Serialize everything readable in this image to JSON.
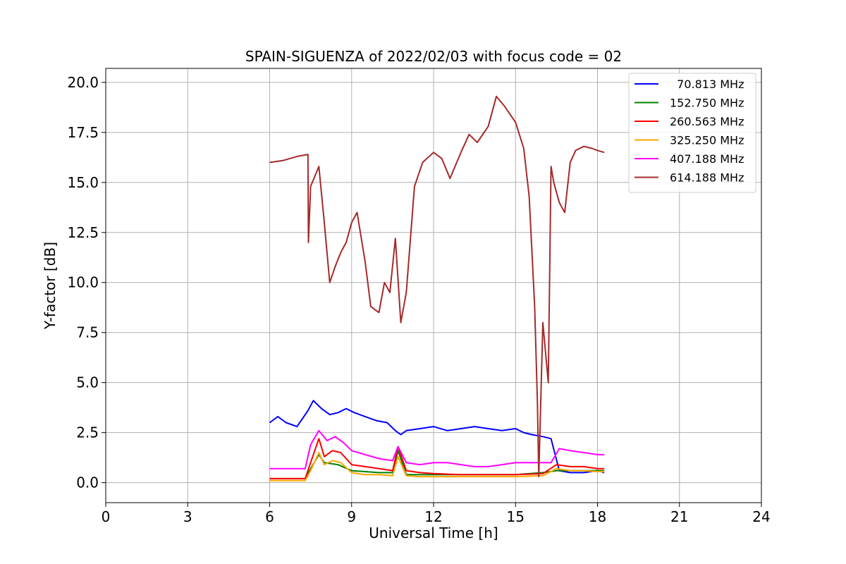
{
  "chart_data": {
    "type": "line",
    "title": "SPAIN-SIGUENZA of 2022/02/03 with focus code = 02",
    "xlabel": "Universal Time [h]",
    "ylabel": "Y-factor [dB]",
    "xlim": [
      0,
      24
    ],
    "ylim": [
      -1.0,
      20.7
    ],
    "xticks": [
      0,
      3,
      6,
      9,
      12,
      15,
      18,
      21,
      24
    ],
    "xtick_labels": [
      "0",
      "3",
      "6",
      "9",
      "12",
      "15",
      "18",
      "21",
      "24"
    ],
    "yticks": [
      0.0,
      2.5,
      5.0,
      7.5,
      10.0,
      12.5,
      15.0,
      17.5,
      20.0
    ],
    "ytick_labels": [
      "0.0",
      "2.5",
      "5.0",
      "7.5",
      "10.0",
      "12.5",
      "15.0",
      "17.5",
      "20.0"
    ],
    "grid": true,
    "legend_position": "top-right",
    "series": [
      {
        "name": "  70.813 MHz",
        "color": "#0000ff",
        "x": [
          6.0,
          6.3,
          6.6,
          7.0,
          7.4,
          7.6,
          7.9,
          8.2,
          8.5,
          8.8,
          9.1,
          9.5,
          9.9,
          10.3,
          10.6,
          10.8,
          11.0,
          11.5,
          12.0,
          12.5,
          13.0,
          13.5,
          14.0,
          14.5,
          15.0,
          15.3,
          15.6,
          16.0,
          16.3,
          16.6,
          17.0,
          17.5,
          18.0,
          18.25
        ],
        "y": [
          3.0,
          3.3,
          3.0,
          2.8,
          3.6,
          4.1,
          3.7,
          3.4,
          3.5,
          3.7,
          3.5,
          3.3,
          3.1,
          3.0,
          2.6,
          2.4,
          2.6,
          2.7,
          2.8,
          2.6,
          2.7,
          2.8,
          2.7,
          2.6,
          2.7,
          2.5,
          2.4,
          2.3,
          2.2,
          0.6,
          0.5,
          0.5,
          0.6,
          0.5
        ]
      },
      {
        "name": "152.750 MHz",
        "color": "#008000",
        "x": [
          6.0,
          7.3,
          7.5,
          7.8,
          8.0,
          8.5,
          9.0,
          10.0,
          10.5,
          10.7,
          11.0,
          12.0,
          13.0,
          14.0,
          15.0,
          16.0,
          16.5,
          17.0,
          18.0,
          18.25
        ],
        "y": [
          0.2,
          0.2,
          0.7,
          1.4,
          1.0,
          0.9,
          0.6,
          0.5,
          0.5,
          1.6,
          0.4,
          0.4,
          0.4,
          0.4,
          0.4,
          0.5,
          0.6,
          0.6,
          0.6,
          0.6
        ]
      },
      {
        "name": "260.563 MHz",
        "color": "#ff0000",
        "x": [
          6.0,
          7.3,
          7.5,
          7.8,
          8.0,
          8.3,
          8.6,
          9.0,
          9.5,
          10.0,
          10.5,
          10.7,
          11.0,
          11.5,
          12.0,
          13.0,
          14.0,
          15.0,
          16.0,
          16.5,
          17.0,
          17.5,
          18.0,
          18.25
        ],
        "y": [
          0.2,
          0.2,
          1.0,
          2.2,
          1.3,
          1.6,
          1.5,
          0.9,
          0.8,
          0.7,
          0.6,
          1.8,
          0.6,
          0.5,
          0.45,
          0.4,
          0.4,
          0.4,
          0.45,
          0.9,
          0.8,
          0.8,
          0.7,
          0.7
        ]
      },
      {
        "name": "325.250 MHz",
        "color": "#ffa500",
        "x": [
          6.0,
          7.3,
          7.5,
          7.8,
          8.0,
          8.3,
          8.6,
          9.0,
          9.5,
          10.0,
          10.5,
          10.7,
          11.0,
          11.5,
          12.0,
          13.0,
          14.0,
          15.0,
          16.0,
          16.5,
          17.0,
          17.5,
          18.0,
          18.25
        ],
        "y": [
          0.1,
          0.1,
          0.6,
          1.5,
          0.9,
          1.1,
          1.0,
          0.5,
          0.4,
          0.4,
          0.35,
          1.3,
          0.35,
          0.3,
          0.3,
          0.3,
          0.3,
          0.3,
          0.35,
          0.7,
          0.6,
          0.6,
          0.55,
          0.55
        ]
      },
      {
        "name": "407.188 MHz",
        "color": "#ff00ff",
        "x": [
          6.0,
          7.0,
          7.3,
          7.5,
          7.8,
          8.1,
          8.4,
          8.7,
          9.0,
          9.5,
          10.0,
          10.5,
          10.7,
          11.0,
          11.5,
          12.0,
          12.5,
          13.0,
          13.5,
          14.0,
          14.5,
          15.0,
          15.5,
          16.0,
          16.3,
          16.6,
          17.0,
          17.5,
          18.0,
          18.25
        ],
        "y": [
          0.7,
          0.7,
          0.7,
          1.9,
          2.6,
          2.1,
          2.3,
          2.0,
          1.6,
          1.4,
          1.2,
          1.1,
          1.8,
          1.0,
          0.9,
          1.0,
          1.0,
          0.9,
          0.8,
          0.8,
          0.9,
          1.0,
          1.0,
          1.0,
          1.0,
          1.7,
          1.6,
          1.5,
          1.4,
          1.4
        ]
      },
      {
        "name": "614.188 MHz",
        "color": "#a52a2a",
        "x": [
          6.0,
          6.5,
          7.0,
          7.4,
          7.42,
          7.5,
          7.8,
          8.0,
          8.2,
          8.4,
          8.6,
          8.8,
          9.0,
          9.2,
          9.5,
          9.7,
          10.0,
          10.2,
          10.4,
          10.6,
          10.8,
          11.0,
          11.3,
          11.6,
          12.0,
          12.3,
          12.6,
          13.0,
          13.3,
          13.6,
          14.0,
          14.3,
          14.6,
          15.0,
          15.3,
          15.5,
          15.7,
          15.8,
          15.85,
          16.0,
          16.2,
          16.3,
          16.4,
          16.6,
          16.8,
          17.0,
          17.2,
          17.5,
          17.8,
          18.0,
          18.25
        ],
        "y": [
          16.0,
          16.1,
          16.3,
          16.4,
          12.0,
          14.8,
          15.8,
          13.0,
          10.0,
          10.8,
          11.5,
          12.0,
          13.0,
          13.5,
          11.0,
          8.8,
          8.5,
          10.0,
          9.5,
          12.2,
          8.0,
          9.5,
          14.8,
          16.0,
          16.5,
          16.2,
          15.2,
          16.5,
          17.4,
          17.0,
          17.8,
          19.3,
          18.8,
          18.0,
          16.7,
          14.3,
          8.8,
          4.0,
          0.3,
          8.0,
          5.0,
          15.8,
          15.0,
          14.0,
          13.5,
          16.0,
          16.6,
          16.8,
          16.7,
          16.6,
          16.5
        ]
      }
    ]
  }
}
